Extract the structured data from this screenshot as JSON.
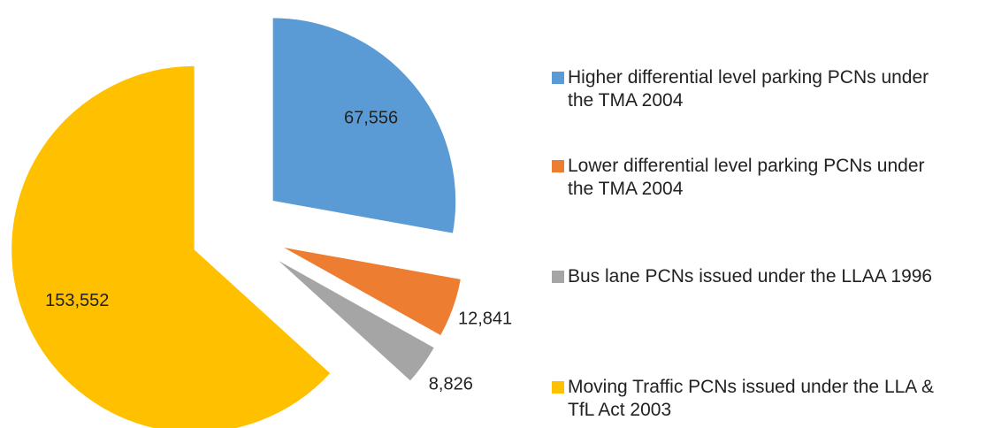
{
  "chart_data": {
    "type": "pie",
    "categories": [
      "Higher differential level parking PCNs under the TMA 2004",
      "Lower differential level parking PCNs under the TMA 2004",
      "Bus lane PCNs issued under the LLAA 1996",
      "Moving Traffic PCNs issued under the LLA & TfL Act 2003"
    ],
    "values": [
      67556,
      12841,
      8826,
      153552
    ],
    "value_labels": [
      "67,556",
      "12,841",
      "8,826",
      "153,552"
    ],
    "colors": [
      "#5b9bd5",
      "#ed7d31",
      "#a5a5a5",
      "#ffc000"
    ],
    "exploded": true,
    "legend": "right"
  }
}
